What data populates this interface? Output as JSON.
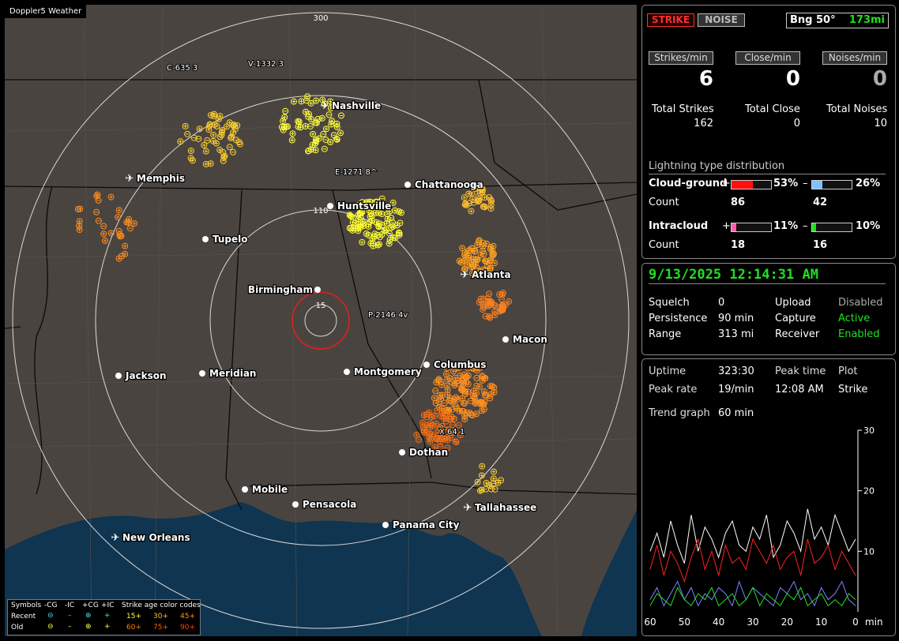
{
  "map": {
    "title": "Doppler5 Weather",
    "range_labels": [
      "300",
      "110",
      "15"
    ],
    "cities": [
      {
        "name": "Nashville",
        "icon": "airport-icon"
      },
      {
        "name": "Memphis",
        "icon": "airport-icon"
      },
      {
        "name": "Chattanooga",
        "icon": "city-dot"
      },
      {
        "name": "Huntsville",
        "icon": "city-dot"
      },
      {
        "name": "Tupelo",
        "icon": "city-dot"
      },
      {
        "name": "Atlanta",
        "icon": "airport-icon"
      },
      {
        "name": "Birmingham",
        "icon": "city-dot"
      },
      {
        "name": "Macon",
        "icon": "city-dot"
      },
      {
        "name": "Jackson",
        "icon": "city-dot"
      },
      {
        "name": "Meridian",
        "icon": "city-dot"
      },
      {
        "name": "Montgomery",
        "icon": "city-dot"
      },
      {
        "name": "Columbus",
        "icon": "city-dot"
      },
      {
        "name": "Dothan",
        "icon": "city-dot"
      },
      {
        "name": "Mobile",
        "icon": "city-dot"
      },
      {
        "name": "Pensacola",
        "icon": "city-dot"
      },
      {
        "name": "Tallahassee",
        "icon": "airport-icon"
      },
      {
        "name": "Panama City",
        "icon": "city-dot"
      },
      {
        "name": "New Orleans",
        "icon": "airport-icon"
      }
    ],
    "cell_labels": [
      "C-635 3",
      "V-1332 3",
      "E-1271 8^",
      "P-2146 4v",
      "X-64 1"
    ],
    "cell_suffixes": [
      "3-",
      "1-"
    ],
    "legend": {
      "symbols_label": "Symbols",
      "headers": [
        "-CG",
        "-IC",
        "+CG",
        "+IC"
      ],
      "recent_label": "Recent",
      "old_label": "Old",
      "recent_glyphs": [
        "⊖",
        "–",
        "⊕",
        "+"
      ],
      "old_glyphs": [
        "⊖",
        "–",
        "⊕",
        "+"
      ],
      "age_title": "Strike age color codes",
      "recent_ages": [
        "15+",
        "30+",
        "45+"
      ],
      "old_ages": [
        "60+",
        "75+",
        "90+"
      ],
      "recent_age_colors": [
        "#ffff40",
        "#ffc020",
        "#ff9020"
      ],
      "old_age_colors": [
        "#ff8000",
        "#ff6000",
        "#ff4000"
      ]
    }
  },
  "status": {
    "strike_button": "STRIKE",
    "noise_button": "NOISE",
    "bearing": "Bng 50°",
    "distance": "173mi",
    "rate_buttons": [
      "Strikes/min",
      "Close/min",
      "Noises/min"
    ],
    "rates": [
      "6",
      "0",
      "0"
    ],
    "totals_labels": [
      "Total Strikes",
      "Total Close",
      "Total Noises"
    ],
    "totals": [
      "162",
      "0",
      "10"
    ],
    "distribution_title": "Lightning type distribution",
    "cg_label": "Cloud-ground",
    "ic_label": "Intracloud",
    "count_label": "Count",
    "plus_sign": "+",
    "minus_sign": "–",
    "cg_plus_pct": "53%",
    "cg_minus_pct": "26%",
    "cg_plus_count": "86",
    "cg_minus_count": "42",
    "ic_plus_pct": "11%",
    "ic_minus_pct": "10%",
    "ic_plus_count": "18",
    "ic_minus_count": "16",
    "cg_plus_fraction": 0.53,
    "cg_minus_fraction": 0.26,
    "ic_plus_fraction": 0.11,
    "ic_minus_fraction": 0.1
  },
  "settings": {
    "datetime": "9/13/2025 12:14:31 AM",
    "squelch_label": "Squelch",
    "squelch": "0",
    "persistence_label": "Persistence",
    "persistence": "90 min",
    "range_label": "Range",
    "range": "313 mi",
    "upload_label": "Upload",
    "upload": "Disabled",
    "capture_label": "Capture",
    "capture": "Active",
    "receiver_label": "Receiver",
    "receiver": "Enabled"
  },
  "stats": {
    "uptime_label": "Uptime",
    "uptime": "323:30",
    "peak_time_label": "Peak time",
    "peak_time": "12:08 AM",
    "plot_label": "Plot",
    "plot": "Strike",
    "peak_rate_label": "Peak rate",
    "peak_rate": "19/min",
    "trend_label": "Trend graph",
    "trend": "60 min"
  },
  "chart_data": {
    "type": "line",
    "x": [
      60,
      58,
      56,
      54,
      52,
      50,
      48,
      46,
      44,
      42,
      40,
      38,
      36,
      34,
      32,
      30,
      28,
      26,
      24,
      22,
      20,
      18,
      16,
      14,
      12,
      10,
      8,
      6,
      4,
      2,
      0
    ],
    "xticks": [
      "60",
      "50",
      "40",
      "30",
      "20",
      "10",
      "0"
    ],
    "xunit": "min",
    "yticks": [
      "10",
      "20",
      "30"
    ],
    "ylim": [
      0,
      30
    ],
    "series": [
      {
        "color": "#ffffff",
        "values": [
          10,
          13,
          9,
          15,
          11,
          8,
          16,
          10,
          14,
          12,
          9,
          13,
          15,
          11,
          10,
          14,
          12,
          16,
          9,
          11,
          15,
          13,
          10,
          17,
          12,
          14,
          11,
          16,
          13,
          10,
          12
        ]
      },
      {
        "color": "#ff2020",
        "values": [
          7,
          11,
          6,
          10,
          8,
          5,
          9,
          12,
          7,
          10,
          6,
          11,
          8,
          9,
          7,
          12,
          10,
          8,
          11,
          7,
          9,
          10,
          6,
          12,
          8,
          9,
          11,
          7,
          10,
          8,
          6
        ]
      },
      {
        "color": "#8080ff",
        "values": [
          2,
          4,
          1,
          3,
          5,
          2,
          4,
          1,
          3,
          2,
          4,
          3,
          1,
          5,
          2,
          4,
          3,
          2,
          1,
          4,
          3,
          5,
          2,
          3,
          1,
          4,
          2,
          3,
          5,
          2,
          1
        ]
      },
      {
        "color": "#20e020",
        "values": [
          1,
          3,
          2,
          1,
          4,
          2,
          1,
          3,
          2,
          4,
          1,
          2,
          3,
          1,
          2,
          4,
          1,
          3,
          2,
          1,
          3,
          2,
          4,
          1,
          2,
          3,
          1,
          2,
          1,
          3,
          2
        ]
      }
    ]
  }
}
